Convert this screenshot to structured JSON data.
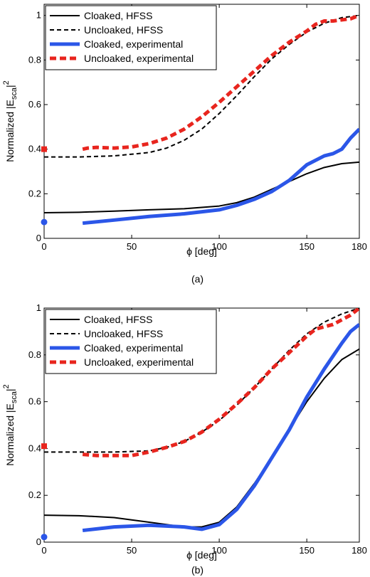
{
  "chart_data": [
    {
      "type": "line",
      "caption": "(a)",
      "xlabel": "ϕ [deg]",
      "ylabel_prefix": "Normalized |E",
      "ylabel_sub": "sca",
      "ylabel_suffix": "|",
      "ylabel_sup": "2",
      "xlim": [
        0,
        180
      ],
      "ylim": [
        0,
        1.05
      ],
      "xticks": [
        0,
        50,
        100,
        150,
        180
      ],
      "yticks": [
        0,
        0.2,
        0.4,
        0.6,
        0.8,
        1
      ],
      "ytick_labels": [
        "0",
        "0.2",
        "0.4",
        "0.6",
        "0.8",
        "1"
      ],
      "grid": false,
      "legend_position": "top-left",
      "legend": [
        "Cloaked, HFSS",
        "Uncloaked, HFSS",
        "Cloaked, experimental",
        "Uncloaked, experimental"
      ],
      "series": [
        {
          "name": "Cloaked, HFSS",
          "color": "#000000",
          "style": "solid",
          "x": [
            0,
            20,
            40,
            60,
            80,
            100,
            110,
            120,
            130,
            140,
            150,
            160,
            170,
            180
          ],
          "y": [
            0.115,
            0.117,
            0.122,
            0.128,
            0.133,
            0.145,
            0.16,
            0.185,
            0.22,
            0.255,
            0.29,
            0.318,
            0.335,
            0.342
          ]
        },
        {
          "name": "Uncloaked, HFSS",
          "color": "#000000",
          "style": "dashed",
          "x": [
            0,
            20,
            40,
            60,
            70,
            80,
            90,
            100,
            110,
            120,
            130,
            140,
            150,
            160,
            170,
            180
          ],
          "y": [
            0.365,
            0.365,
            0.37,
            0.385,
            0.405,
            0.44,
            0.49,
            0.56,
            0.64,
            0.725,
            0.805,
            0.87,
            0.925,
            0.965,
            0.99,
            1.0
          ]
        },
        {
          "name": "Cloaked, experimental",
          "color": "#2b56e8",
          "style": "solid-thick",
          "x": [
            22,
            40,
            60,
            80,
            100,
            110,
            120,
            130,
            140,
            150,
            160,
            165,
            170,
            175,
            180
          ],
          "y": [
            0.068,
            0.082,
            0.098,
            0.11,
            0.128,
            0.148,
            0.175,
            0.21,
            0.26,
            0.33,
            0.37,
            0.38,
            0.4,
            0.45,
            0.49
          ],
          "marker": {
            "x": 0,
            "y": 0.073,
            "shape": "circle"
          }
        },
        {
          "name": "Uncloaked, experimental",
          "color": "#e8251e",
          "style": "dashed-thick",
          "x": [
            22,
            25,
            30,
            40,
            50,
            60,
            70,
            80,
            90,
            100,
            110,
            120,
            130,
            140,
            150,
            155,
            160,
            165,
            170,
            175,
            180
          ],
          "y": [
            0.4,
            0.405,
            0.408,
            0.405,
            0.41,
            0.425,
            0.45,
            0.49,
            0.545,
            0.61,
            0.68,
            0.75,
            0.82,
            0.88,
            0.93,
            0.96,
            0.975,
            0.975,
            0.98,
            0.985,
            1.0
          ],
          "marker": {
            "x": 0,
            "y": 0.4,
            "shape": "square"
          }
        }
      ]
    },
    {
      "type": "line",
      "caption": "(b)",
      "xlabel": "ϕ [deg]",
      "ylabel_prefix": "Normalized |E",
      "ylabel_sub": "sca",
      "ylabel_suffix": "|",
      "ylabel_sup": "2",
      "xlim": [
        0,
        180
      ],
      "ylim": [
        0,
        1
      ],
      "xticks": [
        0,
        50,
        100,
        150,
        180
      ],
      "yticks": [
        0,
        0.2,
        0.4,
        0.6,
        0.8,
        1
      ],
      "ytick_labels": [
        "0",
        "0.2",
        "0.4",
        "0.6",
        "0.8",
        "1"
      ],
      "grid": false,
      "legend_position": "top-left",
      "legend": [
        "Cloaked, HFSS",
        "Uncloaked, HFSS",
        "Cloaked, experimental",
        "Uncloaked, experimental"
      ],
      "series": [
        {
          "name": "Cloaked, HFSS",
          "color": "#000000",
          "style": "solid",
          "x": [
            0,
            20,
            40,
            60,
            80,
            90,
            100,
            110,
            120,
            130,
            140,
            150,
            160,
            170,
            180
          ],
          "y": [
            0.115,
            0.113,
            0.105,
            0.085,
            0.065,
            0.065,
            0.085,
            0.15,
            0.25,
            0.36,
            0.48,
            0.6,
            0.7,
            0.78,
            0.825
          ]
        },
        {
          "name": "Uncloaked, HFSS",
          "color": "#000000",
          "style": "dashed",
          "x": [
            0,
            20,
            40,
            60,
            70,
            80,
            90,
            100,
            110,
            120,
            130,
            140,
            150,
            160,
            170,
            180
          ],
          "y": [
            0.385,
            0.385,
            0.385,
            0.39,
            0.405,
            0.43,
            0.47,
            0.52,
            0.585,
            0.66,
            0.74,
            0.82,
            0.89,
            0.94,
            0.975,
            1.0
          ]
        },
        {
          "name": "Cloaked, experimental",
          "color": "#2b56e8",
          "style": "solid-thick",
          "x": [
            22,
            40,
            60,
            80,
            90,
            100,
            110,
            120,
            130,
            140,
            150,
            160,
            170,
            175,
            180
          ],
          "y": [
            0.05,
            0.065,
            0.072,
            0.065,
            0.055,
            0.075,
            0.14,
            0.24,
            0.36,
            0.48,
            0.62,
            0.74,
            0.85,
            0.9,
            0.93
          ],
          "marker": {
            "x": 0,
            "y": 0.022,
            "shape": "circle"
          }
        },
        {
          "name": "Uncloaked, experimental",
          "color": "#e8251e",
          "style": "dashed-thick",
          "x": [
            22,
            30,
            40,
            50,
            60,
            70,
            80,
            90,
            100,
            110,
            120,
            130,
            140,
            150,
            155,
            160,
            165,
            170,
            175,
            180
          ],
          "y": [
            0.375,
            0.37,
            0.37,
            0.37,
            0.385,
            0.405,
            0.43,
            0.47,
            0.525,
            0.59,
            0.66,
            0.74,
            0.81,
            0.88,
            0.91,
            0.92,
            0.93,
            0.95,
            0.97,
            1.0
          ],
          "marker": {
            "x": 0,
            "y": 0.41,
            "shape": "square"
          }
        }
      ]
    }
  ]
}
